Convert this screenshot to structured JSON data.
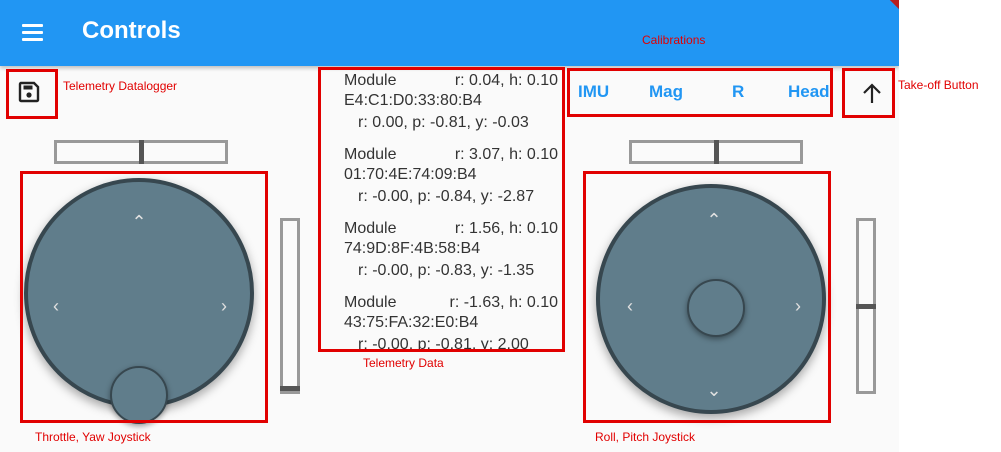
{
  "appbar": {
    "title": "Controls",
    "debug_banner": "DEBUG"
  },
  "calibrations": {
    "buttons": [
      {
        "label": "IMU"
      },
      {
        "label": "Mag"
      },
      {
        "label": "R"
      },
      {
        "label": "Head"
      }
    ]
  },
  "telemetry": {
    "modules": [
      {
        "label": "Module",
        "rh": "r: 0.04, h: 0.10",
        "mac": "E4:C1:D0:33:80:B4",
        "rpy": "r: 0.00, p: -0.81, y: -0.03"
      },
      {
        "label": "Module",
        "rh": "r: 3.07, h: 0.10",
        "mac": "01:70:4E:74:09:B4",
        "rpy": "r: -0.00, p: -0.84, y: -2.87"
      },
      {
        "label": "Module",
        "rh": "r: 1.56, h: 0.10",
        "mac": "74:9D:8F:4B:58:B4",
        "rpy": "r: -0.00, p: -0.83, y: -1.35"
      },
      {
        "label": "Module",
        "rh": "r: -1.63, h: 0.10",
        "mac": "43:75:FA:32:E0:B4",
        "rpy": "r: -0.00, p: -0.81, y: 2.00"
      }
    ]
  },
  "annotations": {
    "telemetry_datalogger": "Telemetry Datalogger",
    "calibrations": "Calibrations",
    "takeoff_button": "Take-off Button",
    "telemetry_data": "Telemetry Data",
    "throttle_yaw": "Throttle, Yaw Joystick",
    "roll_pitch": "Roll, Pitch Joystick"
  },
  "icons": {
    "menu": "menu-icon",
    "save": "save-icon",
    "takeoff": "arrow-up-icon",
    "arrows": [
      "chevron-up-icon",
      "chevron-down-icon",
      "chevron-left-icon",
      "chevron-right-icon"
    ]
  },
  "colors": {
    "appbar": "#2196f3",
    "accent": "#2196f3",
    "joystick": "#607d8b",
    "joystick_border": "#37474f",
    "annotation": "#e10000"
  },
  "sliders": {
    "left_horizontal": 0.5,
    "left_vertical": 0.0,
    "right_horizontal": 0.5,
    "right_vertical": 0.5
  },
  "arrow_glyphs": {
    "up": "⌃",
    "down": "⌄",
    "left": "‹",
    "right": "›"
  }
}
